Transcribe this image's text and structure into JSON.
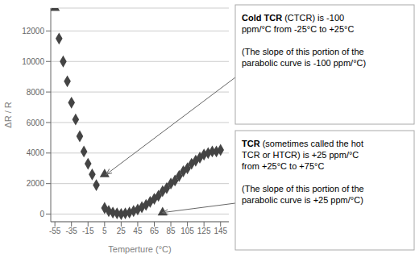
{
  "chart_data": {
    "type": "scatter",
    "xlabel": "Temperture (°C)",
    "ylabel": "ΔR / R",
    "xlim": [
      -60,
      155
    ],
    "ylim": [
      -500,
      13500
    ],
    "xticks": [
      -55,
      -35,
      -15,
      5,
      25,
      45,
      65,
      85,
      105,
      125,
      145
    ],
    "yticks": [
      0,
      2000,
      4000,
      6000,
      8000,
      10000,
      12000
    ],
    "grid": "y",
    "series": [
      {
        "color": "#444444",
        "marker": "triangle",
        "x": [
          -55
        ],
        "values": [
          13500
        ]
      },
      {
        "color": "#444444",
        "marker": "diamond",
        "x": [
          -50,
          -45,
          -40,
          -35,
          -30,
          -25,
          -20,
          -15,
          -10,
          -5
        ],
        "values": [
          11500,
          10000,
          8700,
          7300,
          6200,
          5100,
          4100,
          3300,
          2600,
          1900
        ]
      },
      {
        "color": "#444444",
        "marker": "triangle",
        "x": [
          5
        ],
        "values": [
          2600
        ]
      },
      {
        "color": "#444444",
        "marker": "diamond",
        "x": [
          5,
          10,
          15,
          20,
          25,
          30,
          35,
          40,
          45,
          50,
          55,
          60,
          65,
          70,
          75,
          80,
          85,
          90,
          95,
          100,
          105,
          110,
          115,
          120,
          125,
          130,
          135,
          140,
          145
        ],
        "values": [
          400,
          200,
          100,
          50,
          0,
          50,
          100,
          200,
          300,
          450,
          600,
          800,
          1000,
          1200,
          1500,
          1700,
          2000,
          2200,
          2500,
          2800,
          3000,
          3300,
          3500,
          3700,
          3900,
          4000,
          4100,
          4100,
          4200
        ]
      },
      {
        "color": "#444444",
        "marker": "triangle",
        "x": [
          75
        ],
        "values": [
          100
        ]
      }
    ],
    "annotations": [
      {
        "bold": "Cold TCR",
        "text": " (CTCR) is -100\nppm/°C from -25°C to +25°C\n\n(The slope of this portion of the\nparabolic curve is -100 ppm/°C)",
        "x": 7,
        "y": 2600
      },
      {
        "bold": "TCR",
        "text": " (sometimes called the hot\nTCR or HTCR) is +25 ppm/°C\nfrom +25°C to +75°C\n\n(The slope of this portion of the\nparabolic curve is +25 ppm/°C)",
        "x": 75,
        "y": 100
      }
    ]
  }
}
